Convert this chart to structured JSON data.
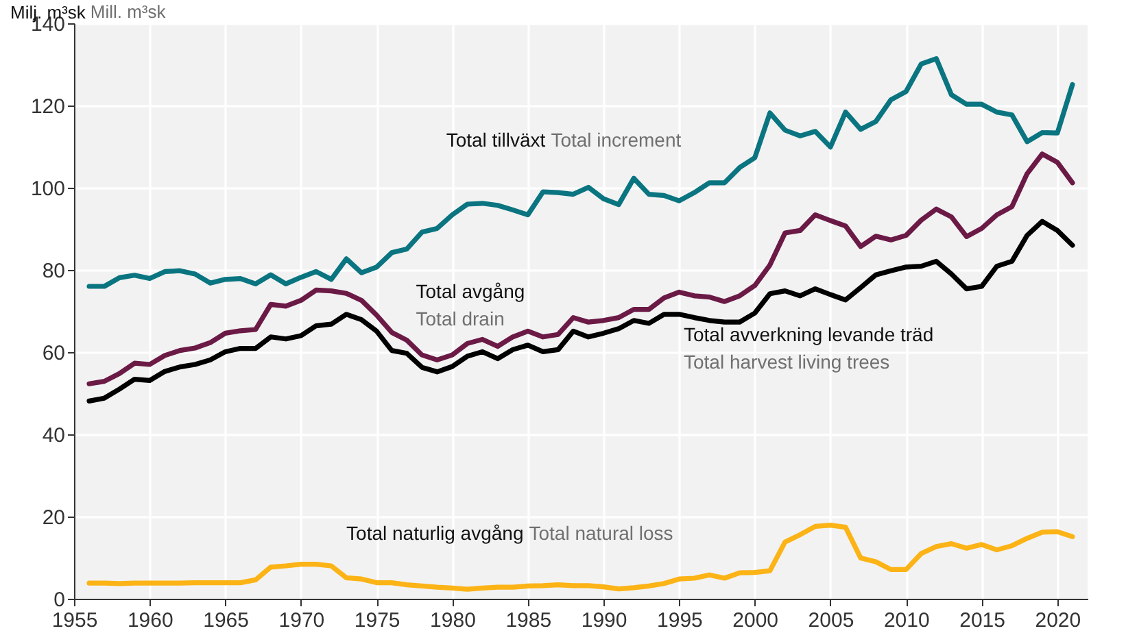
{
  "chart_data": {
    "type": "line",
    "ylabel": "Milj. m³sk",
    "annotations": [
      "Mill. m³sk",
      "Total increment",
      "Total drain",
      "Total harvest living trees",
      "Total natural loss"
    ],
    "x": [
      1956,
      1957,
      1958,
      1959,
      1960,
      1961,
      1962,
      1963,
      1964,
      1965,
      1966,
      1967,
      1968,
      1969,
      1970,
      1971,
      1972,
      1973,
      1974,
      1975,
      1976,
      1977,
      1978,
      1979,
      1980,
      1981,
      1982,
      1983,
      1984,
      1985,
      1986,
      1987,
      1988,
      1989,
      1990,
      1991,
      1992,
      1993,
      1994,
      1995,
      1996,
      1997,
      1998,
      1999,
      2000,
      2001,
      2002,
      2003,
      2004,
      2005,
      2006,
      2007,
      2008,
      2009,
      2010,
      2011,
      2012,
      2013,
      2014,
      2015,
      2016,
      2017,
      2018,
      2019,
      2020,
      2021
    ],
    "series": [
      {
        "name": "Total tillväxt",
        "color": "#0a7580",
        "values": [
          76,
          76,
          78.1,
          78.7,
          77.9,
          79.6,
          79.8,
          79,
          76.8,
          77.7,
          77.9,
          76.6,
          78.8,
          76.6,
          78.2,
          79.6,
          77.7,
          82.7,
          79.3,
          80.7,
          84.2,
          85.1,
          89.2,
          90.1,
          93.4,
          96,
          96.2,
          95.7,
          94.6,
          93.4,
          99,
          98.8,
          98.4,
          100.1,
          97.3,
          95.9,
          102.3,
          98.4,
          98.1,
          96.8,
          98.8,
          101.2,
          101.2,
          104.9,
          107.3,
          118.2,
          114,
          112.6,
          113.7,
          109.9,
          118.4,
          114.2,
          116.1,
          121.4,
          123.4,
          130.1,
          131.4,
          122.6,
          120.3,
          120.3,
          118.4,
          117.7,
          111.2,
          113.4,
          113.3,
          125.1
        ]
      },
      {
        "name": "Total avgång",
        "color": "#6b1a46",
        "values": [
          52.3,
          52.9,
          54.8,
          57.3,
          57,
          59.2,
          60.4,
          61,
          62.3,
          64.6,
          65.2,
          65.5,
          71.6,
          71.2,
          72.6,
          75.1,
          74.9,
          74.3,
          72.6,
          69,
          64.8,
          62.9,
          59.3,
          58.1,
          59.3,
          62.1,
          63.1,
          61.4,
          63.7,
          65.1,
          63.7,
          64.3,
          68.4,
          67.3,
          67.7,
          68.4,
          70.4,
          70.4,
          73.2,
          74.6,
          73.7,
          73.4,
          72.3,
          73.7,
          76.2,
          81.2,
          89,
          89.6,
          93.4,
          92,
          90.7,
          85.7,
          88.2,
          87.3,
          88.4,
          92.1,
          94.8,
          92.9,
          88.1,
          90.1,
          93.4,
          95.4,
          103.4,
          108.2,
          106.2,
          101.2
        ]
      },
      {
        "name": "Total avverkning levande träd",
        "color": "#000000",
        "values": [
          48.1,
          48.8,
          51,
          53.4,
          53.1,
          55.3,
          56.4,
          57,
          58.1,
          60.1,
          60.9,
          60.9,
          63.7,
          63.2,
          64,
          66.4,
          66.8,
          69.2,
          67.9,
          65.1,
          60.4,
          59.7,
          56.3,
          55.2,
          56.5,
          59,
          60.1,
          58.4,
          60.6,
          61.7,
          60.1,
          60.6,
          65.1,
          63.7,
          64.6,
          65.7,
          67.7,
          67,
          69.2,
          69.2,
          68.4,
          67.7,
          67.3,
          67.3,
          69.5,
          74.2,
          74.9,
          73.7,
          75.4,
          74,
          72.7,
          75.7,
          78.8,
          79.8,
          80.7,
          80.9,
          82.1,
          79,
          75.4,
          76,
          80.9,
          82.1,
          88.4,
          91.8,
          89.6,
          86
        ]
      },
      {
        "name": "Total naturlig avgång",
        "color": "#fbb316",
        "values": [
          3.8,
          3.8,
          3.7,
          3.8,
          3.8,
          3.8,
          3.8,
          3.9,
          3.9,
          3.9,
          3.9,
          4.6,
          7.7,
          8,
          8.4,
          8.4,
          8,
          5.1,
          4.8,
          3.9,
          3.9,
          3.4,
          3.1,
          2.8,
          2.6,
          2.3,
          2.6,
          2.8,
          2.8,
          3.1,
          3.2,
          3.4,
          3.2,
          3.2,
          2.9,
          2.4,
          2.7,
          3.1,
          3.7,
          4.8,
          5,
          5.8,
          5,
          6.3,
          6.4,
          6.8,
          13.8,
          15.6,
          17.6,
          17.9,
          17.4,
          9.9,
          9,
          7.1,
          7.1,
          11,
          12.7,
          13.4,
          12.3,
          13.2,
          11.9,
          12.9,
          14.7,
          16.2,
          16.3,
          15.1
        ]
      }
    ],
    "xlim": [
      1955,
      2022
    ],
    "xticks": [
      1955,
      1960,
      1965,
      1970,
      1975,
      1980,
      1985,
      1990,
      1995,
      2000,
      2005,
      2010,
      2015,
      2020
    ],
    "ylim": [
      0,
      140
    ],
    "yticks": [
      0,
      20,
      40,
      60,
      80,
      100,
      120,
      140
    ],
    "grid": true,
    "marker": "none",
    "line_style": "solid"
  }
}
